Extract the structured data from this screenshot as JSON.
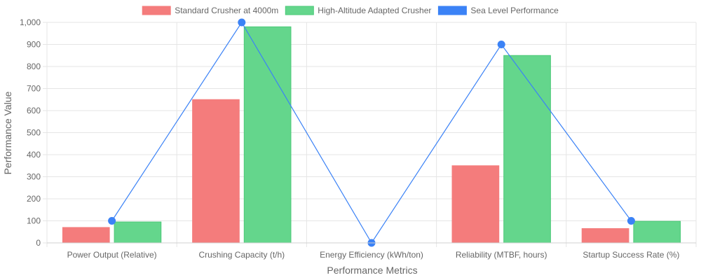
{
  "chart_data": {
    "type": "bar",
    "categories": [
      "Power Output (Relative)",
      "Crushing Capacity (t/h)",
      "Energy Efficiency (kWh/ton)",
      "Reliability (MTBF, hours)",
      "Startup Success Rate (%)"
    ],
    "series": [
      {
        "name": "Standard Crusher at 4000m",
        "type": "bar",
        "values": [
          70,
          650,
          0,
          350,
          65
        ],
        "color": "#f47c7c",
        "border": "#f47c7c"
      },
      {
        "name": "High-Altitude Adapted Crusher",
        "type": "bar",
        "values": [
          95,
          980,
          0,
          850,
          98
        ],
        "color": "#64d68c",
        "border": "#4cc978"
      },
      {
        "name": "Sea Level Performance",
        "type": "line",
        "values": [
          100,
          1000,
          0,
          900,
          100
        ],
        "color": "#3b82f6",
        "border": "#3b82f6"
      }
    ],
    "xlabel": "Performance Metrics",
    "ylabel": "Performance Value",
    "ylim": [
      0,
      1000
    ],
    "yticks": [
      "0",
      "100",
      "200",
      "300",
      "400",
      "500",
      "600",
      "700",
      "800",
      "900",
      "1,000"
    ],
    "grid": true,
    "legend_position": "top"
  }
}
